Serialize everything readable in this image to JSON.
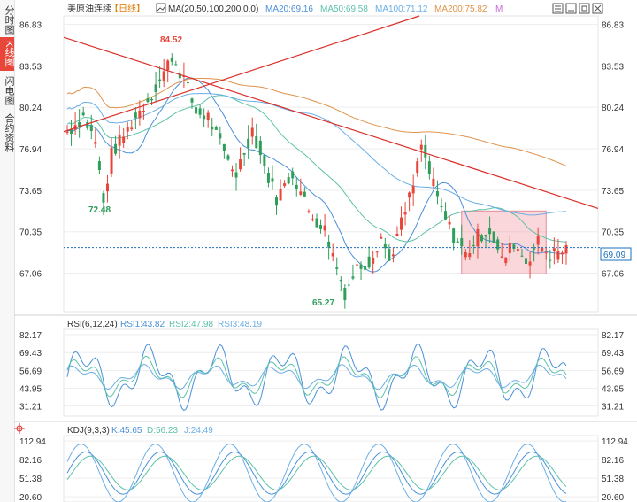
{
  "sidebar": {
    "tabs": [
      {
        "label": "分时图",
        "active": false
      },
      {
        "label": "K线图",
        "active": true
      },
      {
        "label": "闪电图",
        "active": false
      },
      {
        "label": "合约资料",
        "active": false
      }
    ]
  },
  "main_panel": {
    "title": "美原油连续",
    "period": "【日线】",
    "ma_params": "MA(20,50,100,200,0,0)",
    "legend": [
      {
        "text": "MA20:69.16",
        "color": "#4a90d9"
      },
      {
        "text": "MA50:69.58",
        "color": "#5cc2a8"
      },
      {
        "text": "MA100:71.12",
        "color": "#6aaee6"
      },
      {
        "text": "MA200:75.82",
        "color": "#e0924a"
      },
      {
        "text": "M",
        "color": "#c86ad8"
      }
    ],
    "y_ticks": [
      "86.83",
      "83.53",
      "80.24",
      "76.94",
      "73.65",
      "70.35",
      "67.06"
    ],
    "current_price": "69.09",
    "high_label": "84.52",
    "low_label_1": "72.48",
    "low_label_2": "65.27"
  },
  "rsi_panel": {
    "title": "RSI(6,12,24)",
    "legend": [
      {
        "text": "RSI1:43.82",
        "color": "#4a90d9"
      },
      {
        "text": "RSI2:47.98",
        "color": "#5cc2a8"
      },
      {
        "text": "RSI3:48.19",
        "color": "#6aaee6"
      }
    ],
    "y_ticks": [
      "82.17",
      "69.43",
      "56.69",
      "43.95",
      "31.21"
    ]
  },
  "kdj_panel": {
    "title": "KDJ(9,3,3)",
    "legend": [
      {
        "text": "K:45.65",
        "color": "#4a90d9"
      },
      {
        "text": "D:56.23",
        "color": "#5cc2a8"
      },
      {
        "text": "J:24.49",
        "color": "#6aaee6"
      }
    ],
    "y_ticks": [
      "112.94",
      "82.16",
      "51.38",
      "20.60"
    ]
  },
  "colors": {
    "up": "#e8463a",
    "down": "#2e9e5a",
    "trendline": "#d9302a",
    "price_line": "#1a6fbf",
    "box_fill": "rgba(240,140,150,0.35)",
    "box_stroke": "#e58a96"
  },
  "chart_data": [
    {
      "type": "candlestick",
      "title": "美原油连续【日线】",
      "ylim": [
        64.0,
        87.5
      ],
      "y_ticks": [
        86.83,
        83.53,
        80.24,
        76.94,
        73.65,
        70.35,
        67.06
      ],
      "last_price": 69.09,
      "annotations": [
        {
          "label": "84.52",
          "value": 84.52
        },
        {
          "label": "72.48",
          "value": 72.48
        },
        {
          "label": "65.27",
          "value": 65.27
        }
      ],
      "moving_averages": {
        "MA20": 69.16,
        "MA50": 69.58,
        "MA100": 71.12,
        "MA200": 75.82
      }
    },
    {
      "type": "line",
      "title": "RSI(6,12,24)",
      "series_last": {
        "RSI1": 43.82,
        "RSI2": 47.98,
        "RSI3": 48.19
      },
      "y_ticks": [
        82.17,
        69.43,
        56.69,
        43.95,
        31.21
      ]
    },
    {
      "type": "line",
      "title": "KDJ(9,3,3)",
      "series_last": {
        "K": 45.65,
        "D": 56.23,
        "J": 24.49
      },
      "y_ticks": [
        112.94,
        82.16,
        51.38,
        20.6
      ]
    }
  ]
}
